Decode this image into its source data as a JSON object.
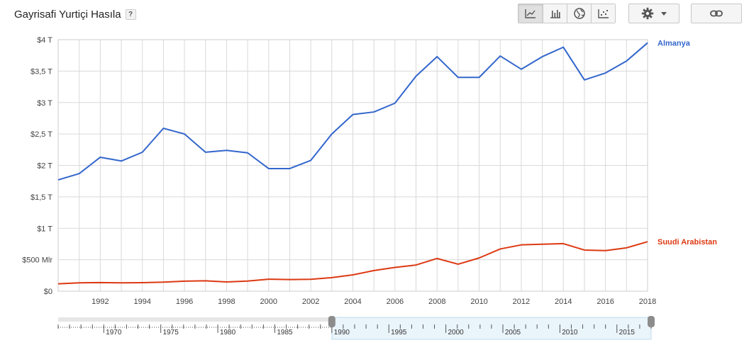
{
  "header": {
    "title": "Gayrisafi Yurtiçi Hasıla",
    "help_label": "?"
  },
  "toolbar": {
    "views": [
      {
        "name": "line-chart-icon",
        "active": true
      },
      {
        "name": "bar-chart-icon",
        "active": false
      },
      {
        "name": "globe-icon",
        "active": false
      },
      {
        "name": "scatter-chart-icon",
        "active": false
      }
    ],
    "settings_icon": "gear-icon",
    "settings_caret_icon": "caret-down-icon",
    "link_icon": "link-icon"
  },
  "colors": {
    "almanya": "#3366cc",
    "suudi": "#dc3912",
    "grid": "#d9d9d9",
    "range_selected": "#eaf4fb"
  },
  "chart_data": {
    "type": "line",
    "title": "",
    "xlabel": "",
    "ylabel": "",
    "x": [
      1990,
      1991,
      1992,
      1993,
      1994,
      1995,
      1996,
      1997,
      1998,
      1999,
      2000,
      2001,
      2002,
      2003,
      2004,
      2005,
      2006,
      2007,
      2008,
      2009,
      2010,
      2011,
      2012,
      2013,
      2014,
      2015,
      2016,
      2017,
      2018
    ],
    "xlim": [
      1990,
      2018
    ],
    "ylim": [
      0,
      4
    ],
    "y_unit": "trillion USD",
    "x_tick_labels": [
      "1992",
      "1994",
      "1996",
      "1998",
      "2000",
      "2002",
      "2004",
      "2006",
      "2008",
      "2010",
      "2012",
      "2014",
      "2016",
      "2018"
    ],
    "x_tick_values": [
      1992,
      1994,
      1996,
      1998,
      2000,
      2002,
      2004,
      2006,
      2008,
      2010,
      2012,
      2014,
      2016,
      2018
    ],
    "y_tick_values": [
      0,
      0.5,
      1,
      1.5,
      2,
      2.5,
      3,
      3.5,
      4
    ],
    "y_tick_labels": [
      "$0",
      "$500 Mlr",
      "$1 T",
      "$1,5 T",
      "$2 T",
      "$2,5 T",
      "$3 T",
      "$3,5 T",
      "$4 T"
    ],
    "grid": true,
    "legend": "right, labels at line ends",
    "series": [
      {
        "name": "Almanya",
        "values": [
          1.77,
          1.87,
          2.13,
          2.07,
          2.21,
          2.59,
          2.5,
          2.21,
          2.24,
          2.2,
          1.95,
          1.95,
          2.08,
          2.5,
          2.81,
          2.85,
          2.99,
          3.42,
          3.73,
          3.4,
          3.4,
          3.74,
          3.53,
          3.73,
          3.88,
          3.36,
          3.47,
          3.66,
          3.95
        ]
      },
      {
        "name": "Suudi Arabistan",
        "values": [
          0.117,
          0.132,
          0.137,
          0.133,
          0.135,
          0.143,
          0.159,
          0.165,
          0.146,
          0.161,
          0.19,
          0.185,
          0.189,
          0.215,
          0.259,
          0.328,
          0.377,
          0.416,
          0.52,
          0.429,
          0.528,
          0.671,
          0.736,
          0.747,
          0.756,
          0.654,
          0.645,
          0.689,
          0.787
        ]
      }
    ],
    "range_selector": {
      "full_range": [
        1966,
        2018
      ],
      "selected_range": [
        1990,
        2018
      ],
      "tick_values": [
        1970,
        1975,
        1980,
        1985,
        1990,
        1995,
        2000,
        2005,
        2010,
        2015
      ],
      "tick_labels": [
        "1970",
        "1975",
        "1980",
        "1985",
        "1990",
        "1995",
        "2000",
        "2005",
        "2010",
        "2015"
      ]
    }
  }
}
